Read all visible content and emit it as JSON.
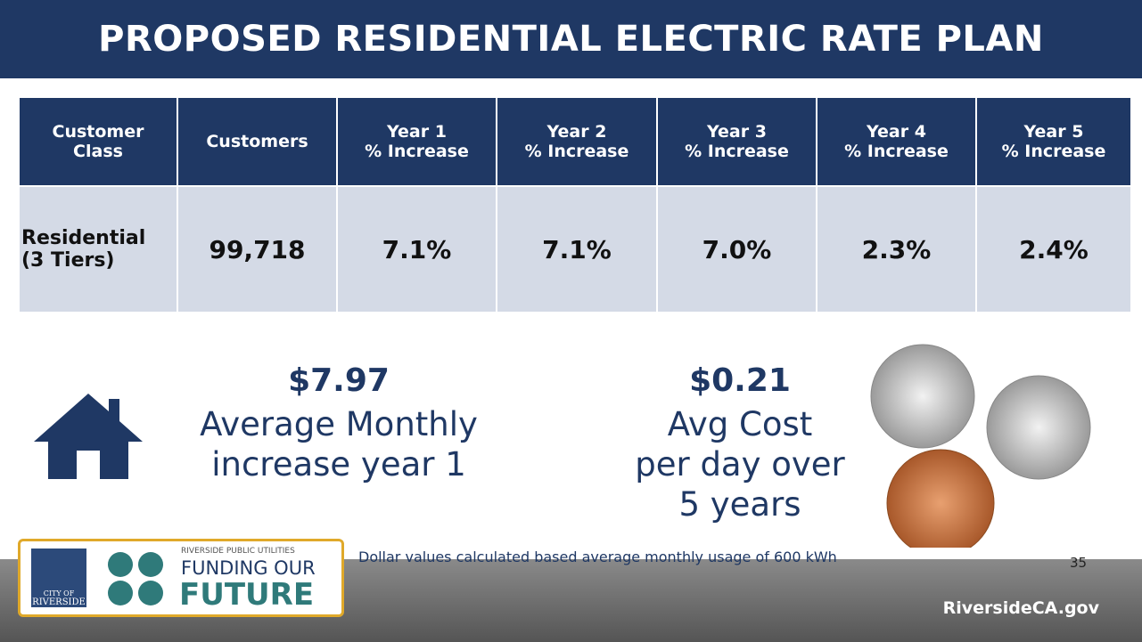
{
  "header": {
    "title": "PROPOSED RESIDENTIAL ELECTRIC RATE PLAN"
  },
  "table": {
    "columns": [
      [
        "Customer",
        "Class"
      ],
      [
        "Customers"
      ],
      [
        "Year 1",
        "% Increase"
      ],
      [
        "Year 2",
        "% Increase"
      ],
      [
        "Year 3",
        "% Increase"
      ],
      [
        "Year 4",
        "% Increase"
      ],
      [
        "Year 5",
        "% Increase"
      ]
    ],
    "rows": [
      [
        [
          "Residential",
          "(3 Tiers)"
        ],
        "99,718",
        "7.1%",
        "7.1%",
        "7.0%",
        "2.3%",
        "2.4%"
      ]
    ]
  },
  "highlights": [
    {
      "amount": "$7.97",
      "lines": [
        "Average Monthly",
        "increase year 1"
      ]
    },
    {
      "amount": "$0.21",
      "lines": [
        "Avg Cost",
        "per day over",
        "5 years"
      ]
    }
  ],
  "footnote": "Dollar values calculated based average monthly usage of 600 kWh",
  "page_number": "35",
  "website": "RiversideCA.gov",
  "logo": {
    "city_lines": [
      "CITY OF",
      "RIVERSIDE"
    ],
    "utility": "RIVERSIDE PUBLIC UTILITIES",
    "tagline": "FUNDING OUR",
    "emphasis": "FUTURE"
  }
}
